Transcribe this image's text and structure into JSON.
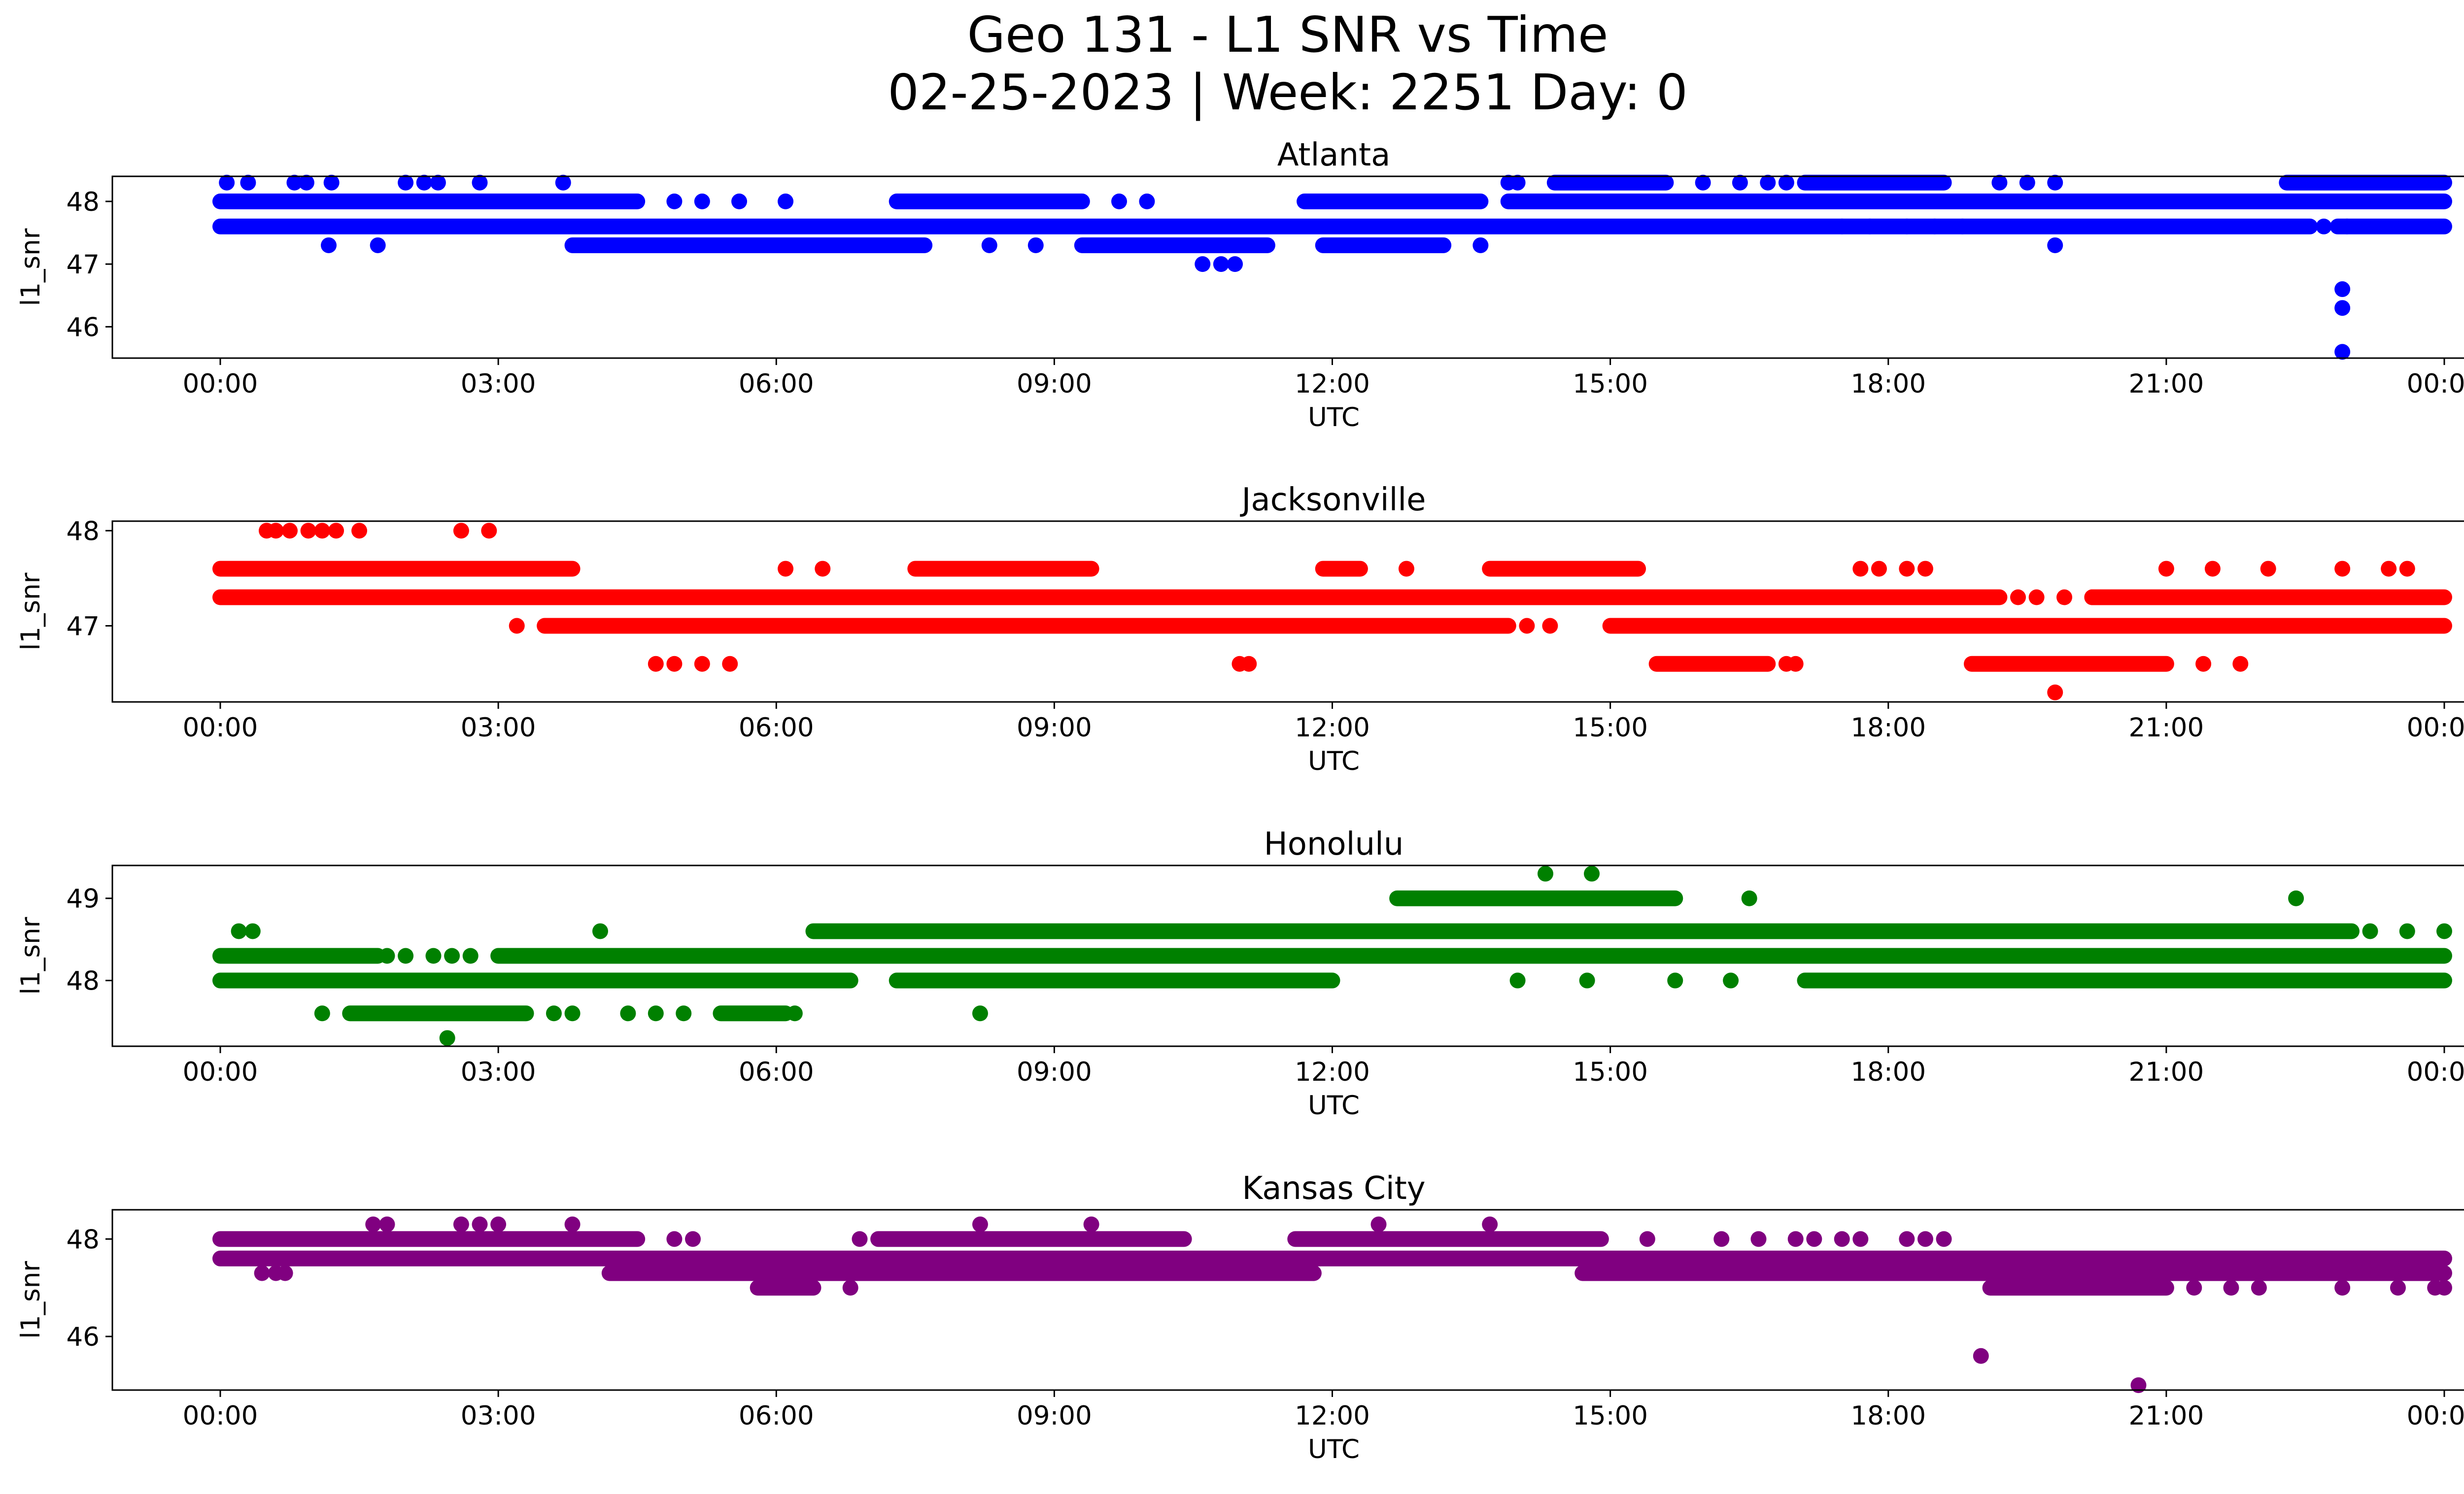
{
  "figure": {
    "title_line1": "Geo 131 - L1 SNR vs Time",
    "title_line2": "02-25-2023 | Week: 2251 Day: 0"
  },
  "chart_data": [
    {
      "type": "scatter",
      "title": "Atlanta",
      "xlabel": "UTC",
      "ylabel": "l1_snr",
      "color": "#0000ff",
      "xticks": [
        "00:00",
        "03:00",
        "06:00",
        "09:00",
        "12:00",
        "15:00",
        "18:00",
        "21:00",
        "00:00"
      ],
      "yticks": [
        46,
        47,
        48
      ],
      "xlim": [
        "2023-02-25T00:00",
        "2023-02-26T00:00"
      ],
      "ylim": [
        45.5,
        48.4
      ],
      "series": [
        {
          "values": [
            [
              0.0,
              47.6
            ],
            [
              24.0,
              47.6
            ],
            [
              0.0,
              48.0
            ],
            [
              24.0,
              48.0
            ]
          ]
        }
      ],
      "segments": [
        {
          "y": 47.6,
          "ranges": [
            [
              0.0,
              22.55
            ],
            [
              22.85,
              24.0
            ]
          ]
        },
        {
          "y": 48.0,
          "ranges": [
            [
              0.0,
              4.5
            ],
            [
              7.3,
              9.3
            ],
            [
              11.7,
              13.6
            ],
            [
              13.9,
              24.0
            ]
          ]
        },
        {
          "y": 47.3,
          "ranges": [
            [
              3.8,
              7.6
            ],
            [
              9.3,
              11.3
            ],
            [
              11.9,
              13.2
            ]
          ]
        },
        {
          "y": 48.3,
          "ranges": [
            [
              14.4,
              15.6
            ],
            [
              17.1,
              18.6
            ],
            [
              22.3,
              24.0
            ]
          ]
        }
      ],
      "points": [
        [
          0.07,
          48.3
        ],
        [
          0.3,
          48.3
        ],
        [
          0.8,
          48.3
        ],
        [
          0.93,
          48.3
        ],
        [
          1.2,
          48.3
        ],
        [
          2.0,
          48.3
        ],
        [
          2.2,
          48.3
        ],
        [
          2.35,
          48.3
        ],
        [
          2.8,
          48.3
        ],
        [
          3.7,
          48.3
        ],
        [
          1.17,
          47.3
        ],
        [
          1.7,
          47.3
        ],
        [
          8.3,
          47.3
        ],
        [
          8.8,
          47.3
        ],
        [
          13.6,
          47.3
        ],
        [
          19.8,
          47.3
        ],
        [
          4.9,
          48.0
        ],
        [
          5.2,
          48.0
        ],
        [
          5.6,
          48.0
        ],
        [
          6.1,
          48.0
        ],
        [
          9.7,
          48.0
        ],
        [
          10.0,
          48.0
        ],
        [
          10.6,
          47.0
        ],
        [
          10.8,
          47.0
        ],
        [
          10.95,
          47.0
        ],
        [
          13.9,
          48.3
        ],
        [
          14.0,
          48.3
        ],
        [
          16.0,
          48.3
        ],
        [
          16.4,
          48.3
        ],
        [
          16.7,
          48.3
        ],
        [
          16.9,
          48.3
        ],
        [
          19.2,
          48.3
        ],
        [
          19.5,
          48.3
        ],
        [
          19.8,
          48.3
        ],
        [
          18.2,
          47.6
        ],
        [
          18.5,
          47.6
        ],
        [
          18.8,
          47.6
        ],
        [
          17.5,
          47.6
        ],
        [
          17.8,
          47.6
        ],
        [
          22.7,
          47.6
        ],
        [
          22.95,
          47.6
        ],
        [
          22.9,
          46.6
        ],
        [
          22.9,
          46.3
        ],
        [
          22.9,
          45.6
        ]
      ]
    },
    {
      "type": "scatter",
      "title": "Jacksonville",
      "xlabel": "UTC",
      "ylabel": "l1_snr",
      "color": "#ff0000",
      "xticks": [
        "00:00",
        "03:00",
        "06:00",
        "09:00",
        "12:00",
        "15:00",
        "18:00",
        "21:00",
        "00:00"
      ],
      "yticks": [
        47,
        48
      ],
      "xlim": [
        "2023-02-25T00:00",
        "2023-02-26T00:00"
      ],
      "ylim": [
        46.2,
        48.1
      ],
      "segments": [
        {
          "y": 47.3,
          "ranges": [
            [
              0.0,
              19.2
            ],
            [
              20.2,
              24.0
            ]
          ]
        },
        {
          "y": 47.6,
          "ranges": [
            [
              0.0,
              3.8
            ],
            [
              7.5,
              9.4
            ],
            [
              11.9,
              12.3
            ],
            [
              13.7,
              15.3
            ]
          ]
        },
        {
          "y": 47.0,
          "ranges": [
            [
              3.5,
              13.9
            ],
            [
              15.0,
              24.0
            ]
          ]
        },
        {
          "y": 46.6,
          "ranges": [
            [
              15.5,
              16.7
            ],
            [
              18.9,
              21.0
            ]
          ]
        }
      ],
      "points": [
        [
          0.5,
          48.0
        ],
        [
          0.6,
          48.0
        ],
        [
          0.75,
          48.0
        ],
        [
          0.95,
          48.0
        ],
        [
          1.1,
          48.0
        ],
        [
          1.25,
          48.0
        ],
        [
          1.5,
          48.0
        ],
        [
          2.6,
          48.0
        ],
        [
          2.9,
          48.0
        ],
        [
          3.2,
          47.0
        ],
        [
          4.7,
          46.6
        ],
        [
          4.9,
          46.6
        ],
        [
          5.2,
          46.6
        ],
        [
          5.5,
          46.6
        ],
        [
          6.1,
          47.6
        ],
        [
          6.5,
          47.6
        ],
        [
          11.0,
          46.6
        ],
        [
          11.1,
          46.6
        ],
        [
          12.8,
          47.6
        ],
        [
          14.1,
          47.0
        ],
        [
          14.35,
          47.0
        ],
        [
          16.9,
          46.6
        ],
        [
          17.0,
          46.6
        ],
        [
          17.7,
          47.6
        ],
        [
          17.9,
          47.6
        ],
        [
          18.2,
          47.6
        ],
        [
          18.4,
          47.6
        ],
        [
          19.4,
          47.3
        ],
        [
          19.6,
          47.3
        ],
        [
          19.9,
          47.3
        ],
        [
          20.2,
          47.3
        ],
        [
          21.0,
          47.6
        ],
        [
          21.5,
          47.6
        ],
        [
          22.1,
          47.6
        ],
        [
          22.9,
          47.6
        ],
        [
          23.4,
          47.6
        ],
        [
          23.6,
          47.6
        ],
        [
          21.4,
          46.6
        ],
        [
          21.8,
          46.6
        ],
        [
          19.8,
          46.3
        ]
      ]
    },
    {
      "type": "scatter",
      "title": "Honolulu",
      "xlabel": "UTC",
      "ylabel": "l1_snr",
      "color": "#008000",
      "xticks": [
        "00:00",
        "03:00",
        "06:00",
        "09:00",
        "12:00",
        "15:00",
        "18:00",
        "21:00",
        "00:00"
      ],
      "yticks": [
        48,
        49
      ],
      "xlim": [
        "2023-02-25T00:00",
        "2023-02-26T00:00"
      ],
      "ylim": [
        47.2,
        49.4
      ],
      "segments": [
        {
          "y": 48.3,
          "ranges": [
            [
              0.0,
              1.7
            ],
            [
              3.0,
              24.0
            ]
          ]
        },
        {
          "y": 48.0,
          "ranges": [
            [
              0.0,
              6.8
            ],
            [
              7.3,
              12.0
            ],
            [
              17.1,
              24.0
            ]
          ]
        },
        {
          "y": 48.6,
          "ranges": [
            [
              6.4,
              23.0
            ]
          ]
        },
        {
          "y": 49.0,
          "ranges": [
            [
              12.7,
              15.7
            ]
          ]
        },
        {
          "y": 47.6,
          "ranges": [
            [
              1.4,
              3.3
            ],
            [
              5.4,
              6.1
            ]
          ]
        }
      ],
      "points": [
        [
          0.2,
          48.6
        ],
        [
          0.35,
          48.6
        ],
        [
          1.8,
          48.3
        ],
        [
          2.0,
          48.3
        ],
        [
          2.3,
          48.3
        ],
        [
          2.5,
          48.3
        ],
        [
          2.7,
          48.3
        ],
        [
          1.1,
          47.6
        ],
        [
          3.6,
          47.6
        ],
        [
          3.8,
          47.6
        ],
        [
          4.4,
          47.6
        ],
        [
          4.7,
          47.6
        ],
        [
          5.0,
          47.6
        ],
        [
          6.2,
          47.6
        ],
        [
          8.2,
          47.6
        ],
        [
          4.1,
          48.6
        ],
        [
          2.45,
          47.3
        ],
        [
          14.3,
          49.3
        ],
        [
          14.8,
          49.3
        ],
        [
          16.5,
          49.0
        ],
        [
          22.4,
          49.0
        ],
        [
          14.0,
          48.0
        ],
        [
          14.75,
          48.0
        ],
        [
          15.7,
          48.0
        ],
        [
          16.3,
          48.0
        ],
        [
          23.2,
          48.6
        ],
        [
          23.6,
          48.6
        ],
        [
          24.0,
          48.6
        ]
      ]
    },
    {
      "type": "scatter",
      "title": "Kansas City",
      "xlabel": "UTC",
      "ylabel": "l1_snr",
      "color": "#800080",
      "xticks": [
        "00:00",
        "03:00",
        "06:00",
        "09:00",
        "12:00",
        "15:00",
        "18:00",
        "21:00",
        "00:00"
      ],
      "yticks": [
        46,
        48
      ],
      "xlim": [
        "2023-02-25T00:00",
        "2023-02-26T00:00"
      ],
      "ylim": [
        44.9,
        48.6
      ],
      "segments": [
        {
          "y": 48.0,
          "ranges": [
            [
              0.0,
              4.5
            ],
            [
              7.1,
              10.4
            ],
            [
              11.6,
              14.9
            ]
          ]
        },
        {
          "y": 47.6,
          "ranges": [
            [
              0.0,
              24.0
            ]
          ]
        },
        {
          "y": 47.3,
          "ranges": [
            [
              4.2,
              11.8
            ],
            [
              14.7,
              24.0
            ]
          ]
        },
        {
          "y": 47.0,
          "ranges": [
            [
              5.8,
              6.4
            ],
            [
              19.1,
              21.0
            ]
          ]
        }
      ],
      "points": [
        [
          0.45,
          47.3
        ],
        [
          0.6,
          47.3
        ],
        [
          0.7,
          47.3
        ],
        [
          1.65,
          48.3
        ],
        [
          1.8,
          48.3
        ],
        [
          2.6,
          48.3
        ],
        [
          2.8,
          48.3
        ],
        [
          3.0,
          48.3
        ],
        [
          3.8,
          48.3
        ],
        [
          8.2,
          48.3
        ],
        [
          9.4,
          48.3
        ],
        [
          12.5,
          48.3
        ],
        [
          13.7,
          48.3
        ],
        [
          4.9,
          48.0
        ],
        [
          5.1,
          48.0
        ],
        [
          6.9,
          48.0
        ],
        [
          15.4,
          48.0
        ],
        [
          16.2,
          48.0
        ],
        [
          16.6,
          48.0
        ],
        [
          17.0,
          48.0
        ],
        [
          17.2,
          48.0
        ],
        [
          17.5,
          48.0
        ],
        [
          17.7,
          48.0
        ],
        [
          18.2,
          48.0
        ],
        [
          18.4,
          48.0
        ],
        [
          18.6,
          48.0
        ],
        [
          6.8,
          47.0
        ],
        [
          19.0,
          45.6
        ],
        [
          20.7,
          45.0
        ],
        [
          21.3,
          47.0
        ],
        [
          21.7,
          47.0
        ],
        [
          22.0,
          47.0
        ],
        [
          22.9,
          47.0
        ],
        [
          23.5,
          47.0
        ],
        [
          23.9,
          47.0
        ],
        [
          24.0,
          47.0
        ]
      ]
    }
  ]
}
